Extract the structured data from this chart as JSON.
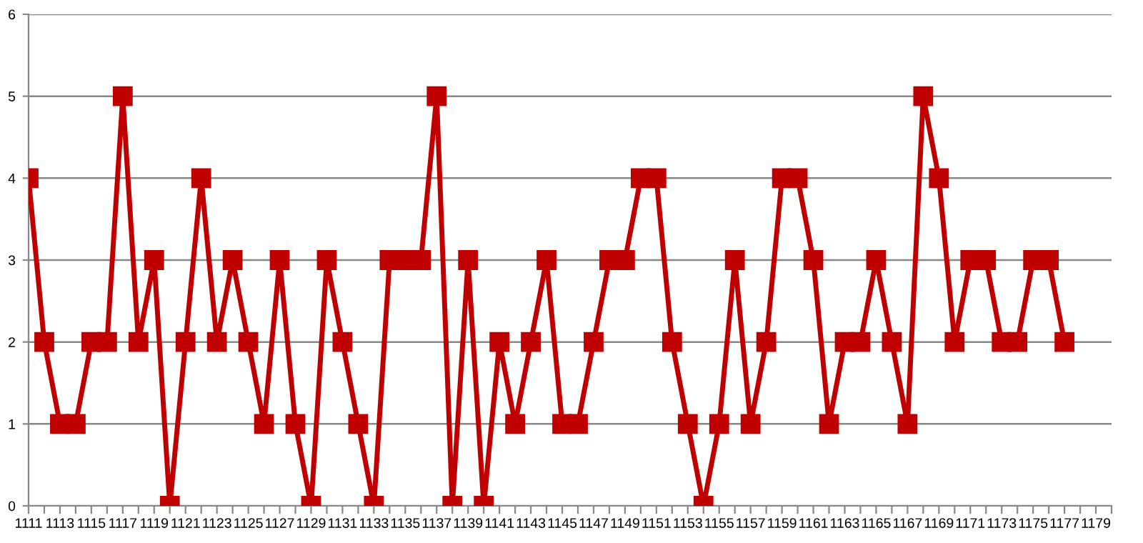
{
  "chart_data": {
    "type": "line",
    "marker": "square",
    "line_style": "solid",
    "grid": "y",
    "categories": [
      "1111",
      null,
      "1113",
      null,
      "1115",
      null,
      "1117",
      null,
      "1119",
      null,
      "1121",
      null,
      "1123",
      null,
      "1125",
      null,
      "1127",
      null,
      "1129",
      null,
      "1131",
      null,
      "1133",
      null,
      "1135",
      null,
      "1137",
      null,
      "1139",
      null,
      "1141",
      null,
      "1143",
      null,
      "1145",
      null,
      "1147",
      null,
      "1149",
      null,
      "1151",
      null,
      "1153",
      null,
      "1155",
      null,
      "1157",
      null,
      "1159",
      null,
      "1161",
      null,
      "1163",
      null,
      "1165",
      null,
      "1167",
      null,
      "1169",
      null,
      "1171",
      null,
      "1173",
      null,
      "1175",
      null,
      "1177",
      null,
      "1179",
      null
    ],
    "series": [
      {
        "color": "#c00000",
        "values": [
          4,
          2,
          1,
          1,
          2,
          2,
          5,
          2,
          3,
          0,
          2,
          4,
          2,
          3,
          2,
          1,
          3,
          1,
          0,
          3,
          2,
          1,
          0,
          3,
          3,
          3,
          5,
          0,
          3,
          0,
          2,
          1,
          2,
          3,
          1,
          1,
          2,
          3,
          3,
          4,
          4,
          2,
          1,
          0,
          1,
          3,
          1,
          2,
          4,
          4,
          3,
          1,
          2,
          2,
          3,
          2,
          1,
          5,
          4,
          2,
          3,
          3,
          2,
          2,
          3,
          3,
          2,
          null,
          null,
          null
        ]
      }
    ],
    "ylim": [
      0,
      6
    ],
    "yticks": [
      0,
      1,
      2,
      3,
      4,
      5,
      6
    ]
  }
}
